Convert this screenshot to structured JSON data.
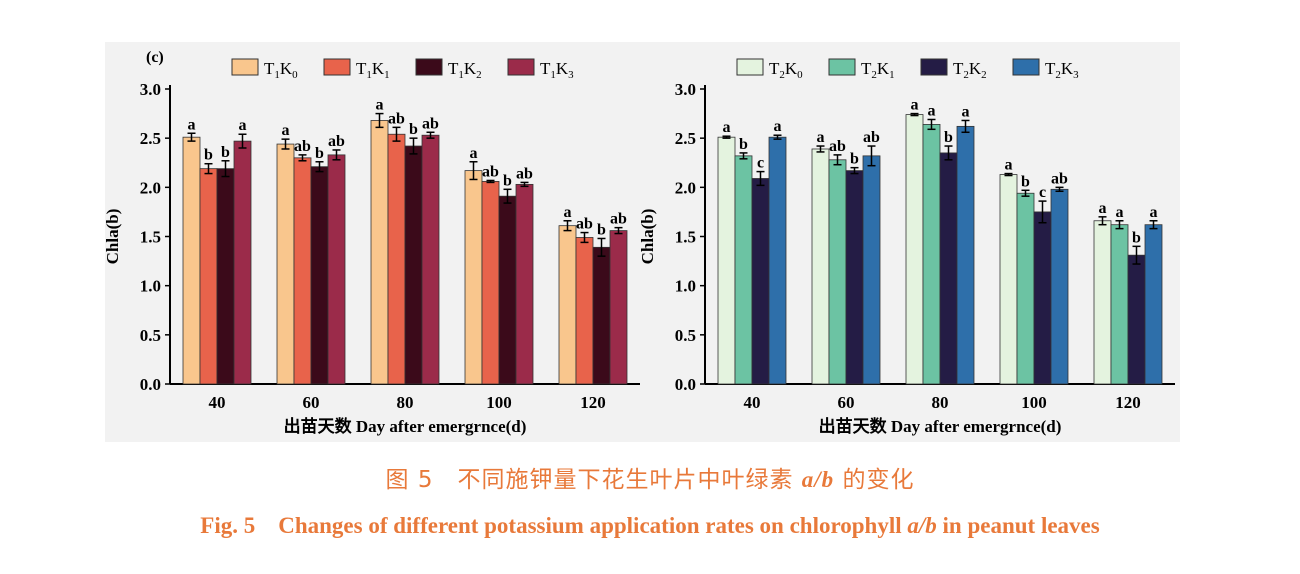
{
  "panel_tag": "(c)",
  "chart_data": [
    {
      "type": "bar",
      "ylabel": "Chla(b)",
      "xlabel": "出苗天数 Day after emergrnce(d)",
      "ylim": [
        0,
        3.0
      ],
      "yticks": [
        "0.0",
        "0.5",
        "1.0",
        "1.5",
        "2.0",
        "2.5",
        "3.0"
      ],
      "categories": [
        "40",
        "60",
        "80",
        "100",
        "120"
      ],
      "legend_placement": "top",
      "series": [
        {
          "name": "T1K0",
          "base": "T",
          "sub1": "1",
          "mid": "K",
          "sub2": "0",
          "color": "#f9c68d",
          "values": [
            2.51,
            2.44,
            2.68,
            2.17,
            1.61
          ],
          "errors": [
            0.04,
            0.05,
            0.07,
            0.09,
            0.05
          ],
          "labels": [
            "a",
            "a",
            "a",
            "a",
            "a"
          ]
        },
        {
          "name": "T1K1",
          "base": "T",
          "sub1": "1",
          "mid": "K",
          "sub2": "1",
          "color": "#e8634b",
          "values": [
            2.19,
            2.3,
            2.54,
            2.06,
            1.49
          ],
          "errors": [
            0.05,
            0.03,
            0.07,
            0.01,
            0.05
          ],
          "labels": [
            "b",
            "ab",
            "ab",
            "ab",
            "ab"
          ]
        },
        {
          "name": "T1K2",
          "base": "T",
          "sub1": "1",
          "mid": "K",
          "sub2": "2",
          "color": "#3b0a1a",
          "values": [
            2.19,
            2.21,
            2.42,
            1.91,
            1.39
          ],
          "errors": [
            0.08,
            0.05,
            0.08,
            0.07,
            0.09
          ],
          "labels": [
            "b",
            "b",
            "b",
            "b",
            "b"
          ]
        },
        {
          "name": "T1K3",
          "base": "T",
          "sub1": "1",
          "mid": "K",
          "sub2": "3",
          "color": "#9b2b4a",
          "values": [
            2.47,
            2.33,
            2.53,
            2.03,
            1.56
          ],
          "errors": [
            0.07,
            0.05,
            0.03,
            0.02,
            0.03
          ],
          "labels": [
            "a",
            "ab",
            "ab",
            "ab",
            "ab"
          ]
        }
      ]
    },
    {
      "type": "bar",
      "ylabel": "Chla(b)",
      "xlabel": "出苗天数 Day after emergrnce(d)",
      "ylim": [
        0,
        3.0
      ],
      "yticks": [
        "0.0",
        "0.5",
        "1.0",
        "1.5",
        "2.0",
        "2.5",
        "3.0"
      ],
      "categories": [
        "40",
        "60",
        "80",
        "100",
        "120"
      ],
      "legend_placement": "top",
      "series": [
        {
          "name": "T2K0",
          "base": "T",
          "sub1": "2",
          "mid": "K",
          "sub2": "0",
          "color": "#e4f3df",
          "values": [
            2.51,
            2.39,
            2.74,
            2.13,
            1.66
          ],
          "errors": [
            0.01,
            0.03,
            0.01,
            0.01,
            0.04
          ],
          "labels": [
            "a",
            "a",
            "a",
            "a",
            "a"
          ]
        },
        {
          "name": "T2K1",
          "base": "T",
          "sub1": "2",
          "mid": "K",
          "sub2": "1",
          "color": "#6cc3a3",
          "values": [
            2.32,
            2.28,
            2.64,
            1.94,
            1.62
          ],
          "errors": [
            0.03,
            0.05,
            0.05,
            0.03,
            0.04
          ],
          "labels": [
            "b",
            "ab",
            "a",
            "b",
            "a"
          ]
        },
        {
          "name": "T2K2",
          "base": "T",
          "sub1": "2",
          "mid": "K",
          "sub2": "2",
          "color": "#241c45",
          "values": [
            2.09,
            2.17,
            2.35,
            1.75,
            1.31
          ],
          "errors": [
            0.07,
            0.03,
            0.07,
            0.11,
            0.09
          ],
          "labels": [
            "c",
            "b",
            "b",
            "c",
            "b"
          ]
        },
        {
          "name": "T2K3",
          "base": "T",
          "sub1": "2",
          "mid": "K",
          "sub2": "3",
          "color": "#2e6faa",
          "values": [
            2.51,
            2.32,
            2.62,
            1.98,
            1.62
          ],
          "errors": [
            0.02,
            0.1,
            0.06,
            0.02,
            0.04
          ],
          "labels": [
            "a",
            "ab",
            "a",
            "ab",
            "a"
          ]
        }
      ]
    }
  ],
  "caption": {
    "cn_pre": "图 5　不同施钾量下花生叶片中叶绿素 ",
    "cn_var": "a/b",
    "cn_post": " 的变化",
    "en_pre": "Fig. 5　Changes of different potassium application rates on chlorophyll ",
    "en_var": "a/b",
    "en_post": " in peanut leaves"
  }
}
